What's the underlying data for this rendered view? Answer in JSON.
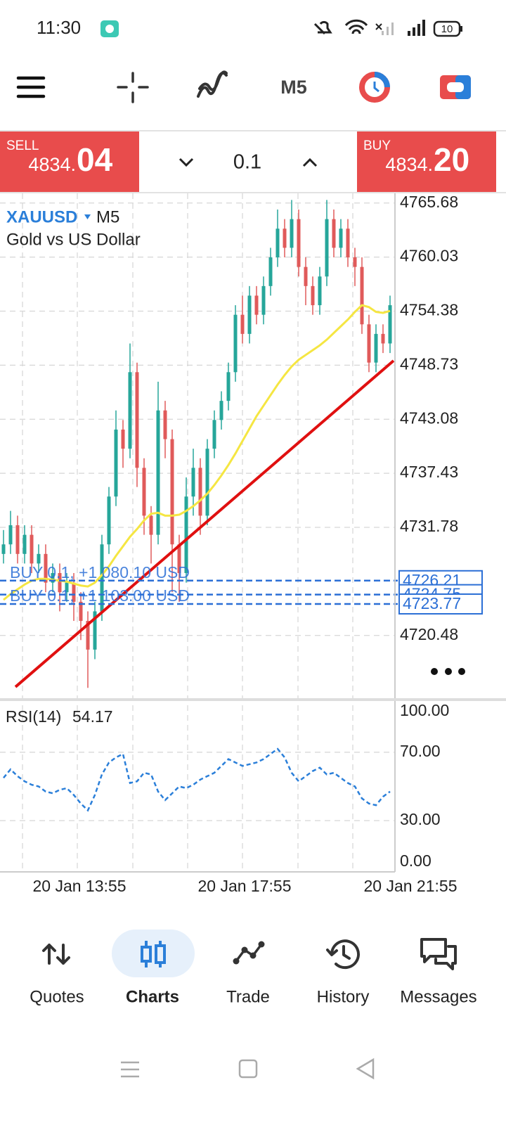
{
  "status_bar": {
    "time": "11:30",
    "battery": "10"
  },
  "toolbar": {
    "timeframe": "M5"
  },
  "trade_panel": {
    "sell": {
      "label": "SELL",
      "price_main": "4834.",
      "price_big": "04"
    },
    "volume": "0.1",
    "buy": {
      "label": "BUY",
      "price_main": "4834.",
      "price_big": "20"
    }
  },
  "chart_data": [
    {
      "type": "candlestick",
      "symbol": "XAUUSD",
      "timeframe": "M5",
      "description": "Gold vs US Dollar",
      "up_color": "#26a69a",
      "down_color": "#e05a5a",
      "open": [
        4729,
        4730,
        4732,
        4729,
        4731,
        4728,
        4729,
        4726,
        4727,
        4725,
        4726,
        4724,
        4722,
        4719,
        4723,
        4730,
        4735,
        4742,
        4740,
        4748,
        4738,
        4733,
        4731,
        4744,
        4741,
        4730,
        4727,
        4735,
        4738,
        4733,
        4740,
        4743,
        4745,
        4748,
        4754,
        4752,
        4756,
        4754,
        4757,
        4760,
        4763,
        4761,
        4764,
        4759,
        4757,
        4755,
        4758,
        4764,
        4761,
        4763,
        4760,
        4759,
        4753,
        4749,
        4752,
        4751
      ],
      "high": [
        4731.5,
        4733.5,
        4733,
        4732,
        4732,
        4730,
        4730,
        4728,
        4728,
        4727,
        4727,
        4725,
        4723,
        4724,
        4731,
        4736,
        4744,
        4743,
        4751,
        4749,
        4739,
        4734,
        4747,
        4745,
        4742,
        4731,
        4737,
        4740,
        4739,
        4741,
        4744,
        4746,
        4749,
        4755,
        4756,
        4757,
        4757,
        4758,
        4761,
        4765,
        4764,
        4766,
        4765,
        4760,
        4758,
        4759,
        4766,
        4765,
        4764,
        4764,
        4761,
        4760,
        4754,
        4753,
        4753,
        4756
      ],
      "low": [
        4728,
        4729,
        4728,
        4728,
        4727,
        4727,
        4725,
        4725,
        4723,
        4724,
        4722,
        4720,
        4715,
        4718,
        4722,
        4729,
        4734,
        4738,
        4739,
        4736,
        4731,
        4728,
        4730,
        4739,
        4725,
        4724,
        4726,
        4733,
        4731,
        4732,
        4739,
        4742,
        4744,
        4747,
        4751,
        4751,
        4753,
        4753,
        4756,
        4759,
        4760,
        4760,
        4758,
        4755,
        4754,
        4754,
        4757,
        4760,
        4760,
        4759,
        4757,
        4752,
        4748,
        4748,
        4750,
        4750
      ],
      "close": [
        4730,
        4732,
        4729,
        4731,
        4728,
        4729,
        4726,
        4727,
        4725,
        4726,
        4724,
        4722,
        4719,
        4723,
        4730,
        4735,
        4742,
        4740,
        4748,
        4738,
        4733,
        4731,
        4744,
        4741,
        4730,
        4727,
        4735,
        4738,
        4733,
        4740,
        4743,
        4745,
        4748,
        4754,
        4752,
        4756,
        4754,
        4757,
        4760,
        4763,
        4761,
        4764,
        4759,
        4757,
        4755,
        4758,
        4764,
        4761,
        4763,
        4760,
        4759,
        4753,
        4749,
        4752,
        4751,
        4755
      ],
      "ma": {
        "color": "#f5e642",
        "values": [
          4724.2,
          4724.8,
          4725.3,
          4725.8,
          4726.2,
          4726.4,
          4726.4,
          4726.3,
          4726.2,
          4726.1,
          4725.9,
          4725.7,
          4725.6,
          4726.0,
          4726.8,
          4727.7,
          4728.8,
          4729.8,
          4730.8,
          4731.6,
          4732.5,
          4733.2,
          4733.3,
          4733.0,
          4733.0,
          4733.1,
          4733.5,
          4734.0,
          4734.6,
          4735.3,
          4736.2,
          4737.2,
          4738.3,
          4739.5,
          4740.8,
          4742.1,
          4743.4,
          4744.5,
          4745.6,
          4746.7,
          4747.7,
          4748.6,
          4749.3,
          4749.8,
          4750.3,
          4750.8,
          4751.4,
          4752.1,
          4752.8,
          4753.5,
          4754.3,
          4755.0,
          4754.8,
          4754.3,
          4754.2,
          4754.4
        ]
      },
      "trendline": {
        "color": "#e01010",
        "start": 4715.1,
        "end": 4749.2
      },
      "orders": [
        {
          "price": 4726.21,
          "label": "BUY 0.1, +1 080.10 USD"
        },
        {
          "price": 4724.75
        },
        {
          "price": 4723.77,
          "label": "BUY 0.1, +1 103.00 USD"
        }
      ],
      "order_color": "#2b6fd6",
      "ylim": [
        4713.92,
        4766.69
      ],
      "yticks": [
        4765.68,
        4760.03,
        4754.38,
        4748.73,
        4743.08,
        4737.43,
        4731.78,
        4720.48
      ],
      "grid": true,
      "x_labels": [
        "20 Jan 13:55",
        "20 Jan 17:55",
        "20 Jan 21:55"
      ]
    },
    {
      "type": "line",
      "title": "RSI(14)",
      "current": 54.17,
      "color": "#2b7fd9",
      "values": [
        55,
        60,
        56,
        53,
        51,
        50,
        47,
        46,
        48,
        49,
        45,
        40,
        36,
        45,
        57,
        64,
        67,
        69,
        52,
        53,
        58,
        57,
        47,
        42,
        46,
        50,
        49,
        51,
        54,
        56,
        58,
        62,
        66,
        64,
        62,
        63,
        64,
        66,
        69,
        72,
        67,
        58,
        53,
        56,
        59,
        61,
        57,
        58,
        55,
        52,
        50,
        43,
        40,
        39,
        44,
        47
      ],
      "ylim": [
        0,
        100
      ],
      "yticks": [
        {
          "value": 100,
          "label": "100.00"
        },
        {
          "value": 70,
          "label": "70.00"
        },
        {
          "value": 30,
          "label": "30.00"
        },
        {
          "value": 0,
          "label": "0.00"
        }
      ],
      "grid": true
    }
  ],
  "nav": {
    "tabs": [
      "Quotes",
      "Charts",
      "Trade",
      "History",
      "Messages"
    ],
    "active": 1,
    "active_color": "#2b7fd9"
  }
}
